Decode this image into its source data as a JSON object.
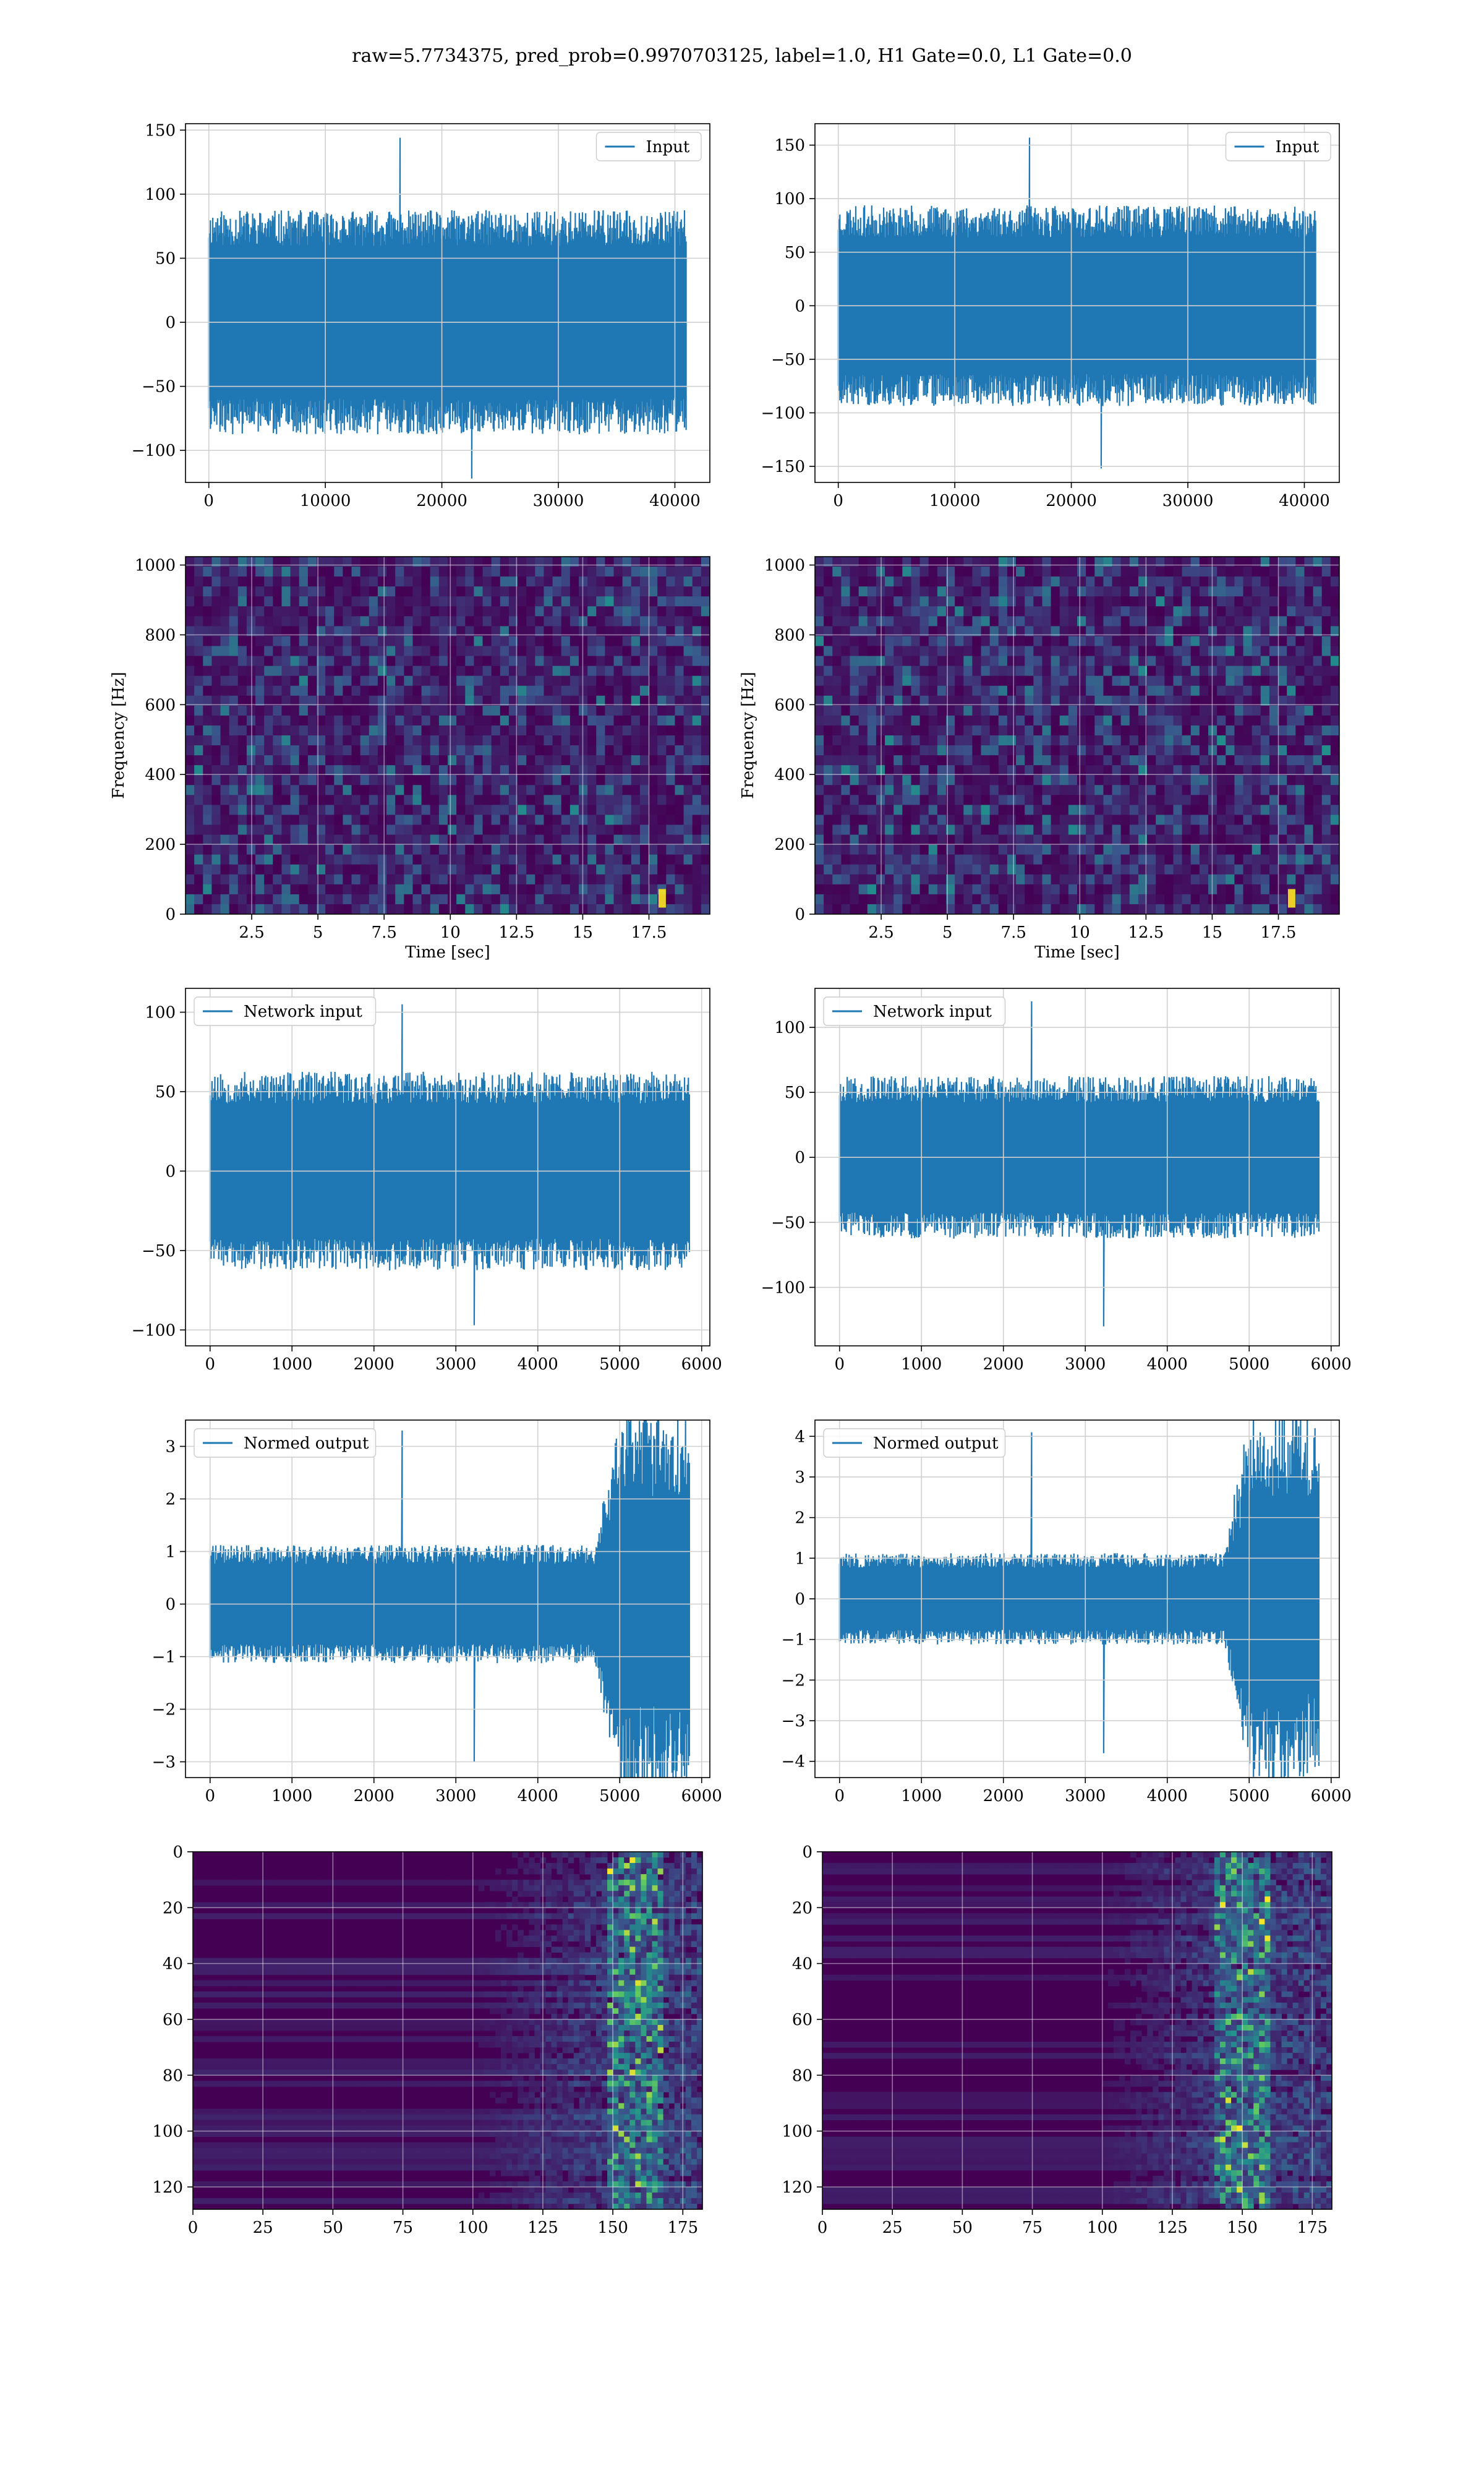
{
  "suptitle": "raw=5.7734375, pred_prob=0.9970703125, label=1.0, H1 Gate=0.0, L1 Gate=0.0",
  "colors": {
    "series": "#1f77b4",
    "grid": "#d0d0d0",
    "heatmap_low": "#440154",
    "heatmap_mid": "#21918c",
    "heatmap_high": "#fde725"
  },
  "chart_data": [
    {
      "id": "h1_input",
      "type": "line",
      "title": "",
      "xlabel": "",
      "ylabel": "",
      "legend": [
        "Input"
      ],
      "legend_loc": "upper right",
      "grid": true,
      "xlim": [
        -2000,
        43000
      ],
      "ylim": [
        -125,
        155
      ],
      "xticks": [
        0,
        10000,
        20000,
        30000,
        40000
      ],
      "yticks": [
        -100,
        -50,
        0,
        50,
        100,
        150
      ],
      "series": [
        {
          "name": "Input",
          "x_range": [
            0,
            40960
          ],
          "n_points": 600,
          "envelope_upper": 70,
          "envelope_lower": -70,
          "max": 144,
          "min": -122,
          "seed": 11
        }
      ]
    },
    {
      "id": "l1_input",
      "type": "line",
      "title": "",
      "xlabel": "",
      "ylabel": "",
      "legend": [
        "Input"
      ],
      "legend_loc": "upper right",
      "grid": true,
      "xlim": [
        -2000,
        43000
      ],
      "ylim": [
        -165,
        170
      ],
      "xticks": [
        0,
        10000,
        20000,
        30000,
        40000
      ],
      "yticks": [
        -150,
        -100,
        -50,
        0,
        50,
        100,
        150
      ],
      "series": [
        {
          "name": "Input",
          "x_range": [
            0,
            40960
          ],
          "n_points": 600,
          "envelope_upper": 75,
          "envelope_lower": -75,
          "max": 157,
          "min": -152,
          "seed": 23
        }
      ]
    },
    {
      "id": "h1_spectrogram",
      "type": "heatmap",
      "title": "",
      "xlabel": "Time [sec]",
      "ylabel": "Frequency [Hz]",
      "grid": true,
      "xlim": [
        0,
        19.8
      ],
      "ylim": [
        0,
        1024
      ],
      "xticks": [
        2.5,
        5.0,
        7.5,
        10.0,
        12.5,
        15.0,
        17.5
      ],
      "yticks": [
        0,
        200,
        400,
        600,
        800,
        1000
      ],
      "bright_spot": {
        "t": 18.0,
        "f": 40
      },
      "seed": 37
    },
    {
      "id": "l1_spectrogram",
      "type": "heatmap",
      "title": "",
      "xlabel": "Time [sec]",
      "ylabel": "Frequency [Hz]",
      "grid": true,
      "xlim": [
        0,
        19.8
      ],
      "ylim": [
        0,
        1024
      ],
      "xticks": [
        2.5,
        5.0,
        7.5,
        10.0,
        12.5,
        15.0,
        17.5
      ],
      "yticks": [
        0,
        200,
        400,
        600,
        800,
        1000
      ],
      "bright_spot": {
        "t": 18.0,
        "f": 40
      },
      "seed": 41
    },
    {
      "id": "h1_network_input",
      "type": "line",
      "title": "",
      "xlabel": "",
      "ylabel": "",
      "legend": [
        "Network input"
      ],
      "legend_loc": "upper left",
      "grid": true,
      "xlim": [
        -300,
        6100
      ],
      "ylim": [
        -110,
        115
      ],
      "xticks": [
        0,
        1000,
        2000,
        3000,
        4000,
        5000,
        6000
      ],
      "yticks": [
        -100,
        -50,
        0,
        50,
        100
      ],
      "series": [
        {
          "name": "Network input",
          "x_range": [
            0,
            5850
          ],
          "n_points": 500,
          "envelope_upper": 50,
          "envelope_lower": -50,
          "max": 105,
          "min": -97,
          "seed": 53
        }
      ]
    },
    {
      "id": "l1_network_input",
      "type": "line",
      "title": "",
      "xlabel": "",
      "ylabel": "",
      "legend": [
        "Network input"
      ],
      "legend_loc": "upper left",
      "grid": true,
      "xlim": [
        -300,
        6100
      ],
      "ylim": [
        -145,
        130
      ],
      "xticks": [
        0,
        1000,
        2000,
        3000,
        4000,
        5000,
        6000
      ],
      "yticks": [
        -100,
        -50,
        0,
        50,
        100
      ],
      "series": [
        {
          "name": "Network input",
          "x_range": [
            0,
            5850
          ],
          "n_points": 500,
          "envelope_upper": 50,
          "envelope_lower": -50,
          "max": 120,
          "min": -130,
          "seed": 67
        }
      ]
    },
    {
      "id": "h1_normed_output",
      "type": "line",
      "title": "",
      "xlabel": "",
      "ylabel": "",
      "legend": [
        "Normed output"
      ],
      "legend_loc": "upper left",
      "grid": true,
      "xlim": [
        -300,
        6100
      ],
      "ylim": [
        -3.3,
        3.5
      ],
      "xticks": [
        0,
        1000,
        2000,
        3000,
        4000,
        5000,
        6000
      ],
      "yticks": [
        -3,
        -2,
        -1,
        0,
        1,
        2,
        3
      ],
      "series": [
        {
          "name": "Normed output",
          "x_range": [
            0,
            5850
          ],
          "n_points": 500,
          "envelope_upper": 0.9,
          "envelope_lower": -0.9,
          "burst_start": 4700,
          "burst_amp": 2.5,
          "max": 3.3,
          "min": -3.0,
          "seed": 71
        }
      ]
    },
    {
      "id": "l1_normed_output",
      "type": "line",
      "title": "",
      "xlabel": "",
      "ylabel": "",
      "legend": [
        "Normed output"
      ],
      "legend_loc": "upper left",
      "grid": true,
      "xlim": [
        -300,
        6100
      ],
      "ylim": [
        -4.4,
        4.4
      ],
      "xticks": [
        0,
        1000,
        2000,
        3000,
        4000,
        5000,
        6000
      ],
      "yticks": [
        -4,
        -3,
        -2,
        -1,
        0,
        1,
        2,
        3,
        4
      ],
      "series": [
        {
          "name": "Normed output",
          "x_range": [
            0,
            5850
          ],
          "n_points": 500,
          "envelope_upper": 0.9,
          "envelope_lower": -0.9,
          "burst_start": 4700,
          "burst_amp": 3.3,
          "max": 4.1,
          "min": -3.8,
          "seed": 83
        }
      ]
    },
    {
      "id": "h1_feature_map",
      "type": "heatmap",
      "title": "",
      "xlabel": "",
      "ylabel": "",
      "grid": true,
      "xlim": [
        0,
        182
      ],
      "ylim": [
        128,
        0
      ],
      "xticks": [
        0,
        25,
        50,
        75,
        100,
        125,
        150,
        175
      ],
      "yticks": [
        0,
        20,
        40,
        60,
        80,
        100,
        120
      ],
      "activity_onset": 100,
      "activity_peak": 158,
      "seed": 97
    },
    {
      "id": "l1_feature_map",
      "type": "heatmap",
      "title": "",
      "xlabel": "",
      "ylabel": "",
      "grid": true,
      "xlim": [
        0,
        182
      ],
      "ylim": [
        128,
        0
      ],
      "xticks": [
        0,
        25,
        50,
        75,
        100,
        125,
        150,
        175
      ],
      "yticks": [
        0,
        20,
        40,
        60,
        80,
        100,
        120
      ],
      "activity_onset": 100,
      "activity_peak": 150,
      "seed": 101
    }
  ]
}
